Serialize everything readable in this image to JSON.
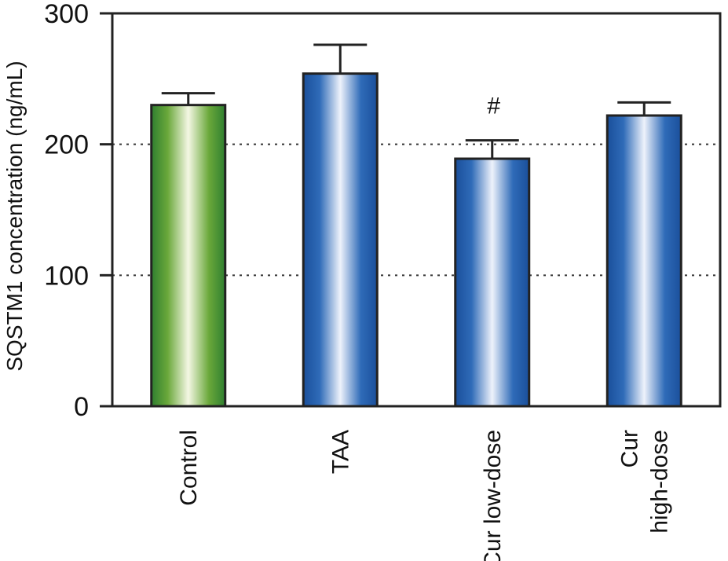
{
  "chart_data": {
    "type": "bar",
    "title": "",
    "xlabel": "",
    "ylabel": "SQSTM1 concentration (ng/mL)",
    "ylim": [
      0,
      300
    ],
    "yticks": [
      "0",
      "100",
      "200",
      "300"
    ],
    "grid": "dotted horizontal at 100 and 200",
    "categories": [
      [
        "Control"
      ],
      [
        "TAA"
      ],
      [
        "Cur low-dose"
      ],
      [
        "Cur",
        "high-dose"
      ]
    ],
    "values": [
      230,
      254,
      189,
      222
    ],
    "error": [
      9,
      22,
      14,
      10
    ],
    "annotations": [
      "",
      "",
      "#",
      ""
    ],
    "colors": [
      "#2e8a3a",
      "#1f5aa8",
      "#1f5aa8",
      "#1f5aa8"
    ]
  }
}
